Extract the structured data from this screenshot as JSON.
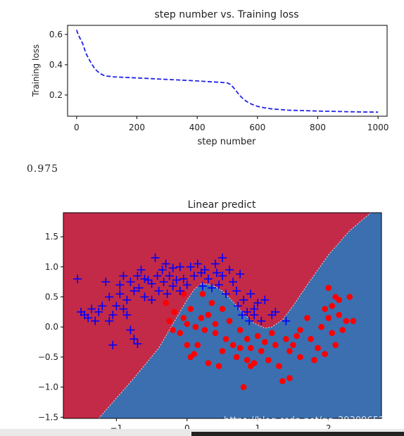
{
  "output_text": "0.975",
  "watermark": "https://blog.csdn.net/qq_39309652",
  "colors": {
    "loss_line": "#2323e8",
    "region_red": "#c22a47",
    "region_blue": "#3b6fb0",
    "points_red": "#ff0000",
    "points_blue": "#0000ff",
    "boundary": "#dddddd"
  },
  "chart_data": [
    {
      "type": "line",
      "title": "step number vs. Training loss",
      "xlabel": "step number",
      "ylabel": "Training loss",
      "xlim": [
        -30,
        1030
      ],
      "ylim": [
        0.06,
        0.66
      ],
      "xticks": [
        0,
        200,
        400,
        600,
        800,
        1000
      ],
      "yticks": [
        0.2,
        0.4,
        0.6
      ],
      "xtick_labels": [
        "0",
        "200",
        "400",
        "600",
        "800",
        "1000"
      ],
      "ytick_labels": [
        "0.2",
        "0.4",
        "0.6"
      ],
      "line_style": "dashed",
      "series": [
        {
          "x": [
            0,
            5,
            10,
            15,
            20,
            25,
            30,
            40,
            50,
            60,
            70,
            80,
            90,
            100,
            125,
            150,
            200,
            250,
            300,
            350,
            400,
            425,
            450,
            475,
            500,
            510,
            520,
            530,
            540,
            550,
            560,
            570,
            580,
            590,
            600,
            625,
            650,
            700,
            750,
            800,
            850,
            900,
            950,
            1000
          ],
          "y": [
            0.63,
            0.6,
            0.58,
            0.56,
            0.54,
            0.51,
            0.48,
            0.44,
            0.405,
            0.375,
            0.355,
            0.34,
            0.33,
            0.325,
            0.32,
            0.317,
            0.313,
            0.308,
            0.303,
            0.298,
            0.293,
            0.29,
            0.287,
            0.284,
            0.28,
            0.27,
            0.25,
            0.225,
            0.2,
            0.18,
            0.163,
            0.15,
            0.14,
            0.132,
            0.125,
            0.115,
            0.108,
            0.1,
            0.097,
            0.094,
            0.092,
            0.09,
            0.088,
            0.087
          ]
        }
      ]
    },
    {
      "type": "scatter",
      "title": "Linear predict",
      "xlim": [
        -1.75,
        2.75
      ],
      "ylim": [
        -1.52,
        1.9
      ],
      "xticks": [
        -1,
        0,
        1,
        2
      ],
      "yticks": [
        -1.5,
        -1.0,
        -0.5,
        0.0,
        0.5,
        1.0,
        1.5
      ],
      "xtick_labels": [
        "−1",
        "0",
        "1",
        "2"
      ],
      "ytick_labels": [
        "−1.5",
        "−1.0",
        "−0.5",
        "0.0",
        "0.5",
        "1.0",
        "1.5"
      ],
      "decision_boundary": {
        "x": [
          -1.25,
          -0.75,
          -0.4,
          -0.15,
          0.0,
          0.1,
          0.2,
          0.35,
          0.5,
          0.65,
          0.8,
          0.95,
          1.1,
          1.2,
          1.35,
          1.5,
          1.7,
          2.0,
          2.3,
          2.6
        ],
        "y": [
          -1.52,
          -0.85,
          -0.35,
          0.15,
          0.45,
          0.62,
          0.72,
          0.7,
          0.6,
          0.42,
          0.22,
          0.06,
          -0.02,
          0.0,
          0.12,
          0.35,
          0.7,
          1.2,
          1.6,
          1.9
        ],
        "left_region": "red",
        "right_region": "blue"
      },
      "series": [
        {
          "marker": "plus",
          "color": "blue",
          "points": [
            [
              -1.55,
              0.8
            ],
            [
              -1.5,
              0.25
            ],
            [
              -1.45,
              0.2
            ],
            [
              -1.4,
              0.15
            ],
            [
              -1.35,
              0.3
            ],
            [
              -1.3,
              0.1
            ],
            [
              -1.25,
              0.25
            ],
            [
              -1.2,
              0.35
            ],
            [
              -1.15,
              0.75
            ],
            [
              -1.1,
              0.5
            ],
            [
              -1.1,
              0.1
            ],
            [
              -1.05,
              0.2
            ],
            [
              -1.05,
              -0.3
            ],
            [
              -1.0,
              0.35
            ],
            [
              -0.95,
              0.55
            ],
            [
              -0.95,
              0.7
            ],
            [
              -0.9,
              0.3
            ],
            [
              -0.9,
              0.85
            ],
            [
              -0.85,
              0.45
            ],
            [
              -0.85,
              0.2
            ],
            [
              -0.8,
              -0.05
            ],
            [
              -0.8,
              0.75
            ],
            [
              -0.75,
              0.6
            ],
            [
              -0.75,
              -0.2
            ],
            [
              -0.7,
              0.85
            ],
            [
              -0.7,
              -0.28
            ],
            [
              -0.68,
              0.65
            ],
            [
              -0.65,
              0.95
            ],
            [
              -0.6,
              0.8
            ],
            [
              -0.6,
              0.5
            ],
            [
              -0.55,
              0.78
            ],
            [
              -0.5,
              0.72
            ],
            [
              -0.5,
              0.45
            ],
            [
              -0.45,
              1.15
            ],
            [
              -0.42,
              0.85
            ],
            [
              -0.4,
              0.6
            ],
            [
              -0.35,
              0.95
            ],
            [
              -0.33,
              0.75
            ],
            [
              -0.3,
              1.05
            ],
            [
              -0.28,
              0.55
            ],
            [
              -0.25,
              0.85
            ],
            [
              -0.2,
              0.68
            ],
            [
              -0.2,
              0.98
            ],
            [
              -0.15,
              0.78
            ],
            [
              -0.1,
              1.0
            ],
            [
              -0.1,
              0.6
            ],
            [
              -0.05,
              0.8
            ],
            [
              0.0,
              0.7
            ],
            [
              0.05,
              1.0
            ],
            [
              0.1,
              0.85
            ],
            [
              0.15,
              1.05
            ],
            [
              0.2,
              0.9
            ],
            [
              0.22,
              0.68
            ],
            [
              0.25,
              0.95
            ],
            [
              0.3,
              0.8
            ],
            [
              0.35,
              0.65
            ],
            [
              0.4,
              1.05
            ],
            [
              0.42,
              0.9
            ],
            [
              0.45,
              0.7
            ],
            [
              0.5,
              0.85
            ],
            [
              0.5,
              1.15
            ],
            [
              0.55,
              0.55
            ],
            [
              0.6,
              0.95
            ],
            [
              0.65,
              0.75
            ],
            [
              0.7,
              0.6
            ],
            [
              0.72,
              0.35
            ],
            [
              0.75,
              0.88
            ],
            [
              0.8,
              0.45
            ],
            [
              0.85,
              0.25
            ],
            [
              0.9,
              0.55
            ],
            [
              0.95,
              0.2
            ],
            [
              1.0,
              0.4
            ],
            [
              1.05,
              0.1
            ],
            [
              1.1,
              0.45
            ],
            [
              1.2,
              0.2
            ],
            [
              1.25,
              0.25
            ],
            [
              1.4,
              0.1
            ],
            [
              0.95,
              0.3
            ],
            [
              0.88,
              0.1
            ],
            [
              0.78,
              0.2
            ]
          ]
        },
        {
          "marker": "circle",
          "color": "red",
          "points": [
            [
              -0.3,
              0.4
            ],
            [
              -0.25,
              0.1
            ],
            [
              -0.2,
              -0.05
            ],
            [
              -0.18,
              0.25
            ],
            [
              -0.1,
              -0.1
            ],
            [
              -0.05,
              0.15
            ],
            [
              0.0,
              0.05
            ],
            [
              0.0,
              -0.3
            ],
            [
              0.05,
              0.3
            ],
            [
              0.05,
              -0.5
            ],
            [
              0.1,
              -0.45
            ],
            [
              0.12,
              0.0
            ],
            [
              0.15,
              -0.3
            ],
            [
              0.2,
              0.15
            ],
            [
              0.22,
              0.55
            ],
            [
              0.25,
              -0.05
            ],
            [
              0.3,
              0.2
            ],
            [
              0.3,
              -0.6
            ],
            [
              0.35,
              0.4
            ],
            [
              0.4,
              -0.1
            ],
            [
              0.4,
              0.05
            ],
            [
              0.45,
              -0.65
            ],
            [
              0.5,
              0.3
            ],
            [
              0.5,
              -0.4
            ],
            [
              0.55,
              -0.2
            ],
            [
              0.6,
              0.1
            ],
            [
              0.65,
              -0.3
            ],
            [
              0.7,
              -0.5
            ],
            [
              0.75,
              -0.05
            ],
            [
              0.75,
              -0.35
            ],
            [
              0.8,
              -1.0
            ],
            [
              0.85,
              -0.2
            ],
            [
              0.85,
              -0.55
            ],
            [
              0.9,
              -0.35
            ],
            [
              0.95,
              -0.6
            ],
            [
              1.0,
              -0.15
            ],
            [
              1.05,
              -0.4
            ],
            [
              1.1,
              -0.25
            ],
            [
              1.15,
              -0.55
            ],
            [
              1.2,
              -0.1
            ],
            [
              1.25,
              -0.3
            ],
            [
              1.3,
              -0.65
            ],
            [
              1.35,
              -0.9
            ],
            [
              1.4,
              -0.2
            ],
            [
              1.45,
              -0.85
            ],
            [
              1.45,
              -0.4
            ],
            [
              1.5,
              -0.3
            ],
            [
              1.55,
              -0.15
            ],
            [
              1.6,
              -0.5
            ],
            [
              1.7,
              0.15
            ],
            [
              1.75,
              -0.2
            ],
            [
              1.8,
              -0.55
            ],
            [
              1.85,
              -0.35
            ],
            [
              1.9,
              0.0
            ],
            [
              1.95,
              -0.45
            ],
            [
              1.95,
              0.3
            ],
            [
              2.0,
              0.15
            ],
            [
              2.0,
              0.65
            ],
            [
              2.05,
              -0.1
            ],
            [
              2.05,
              0.35
            ],
            [
              2.1,
              0.5
            ],
            [
              2.1,
              -0.3
            ],
            [
              2.15,
              0.2
            ],
            [
              2.15,
              0.45
            ],
            [
              2.2,
              -0.05
            ],
            [
              2.25,
              0.1
            ],
            [
              2.3,
              0.5
            ],
            [
              2.35,
              0.1
            ],
            [
              -0.05,
              0.55
            ],
            [
              0.9,
              -0.65
            ],
            [
              1.6,
              -0.05
            ]
          ]
        }
      ]
    }
  ]
}
